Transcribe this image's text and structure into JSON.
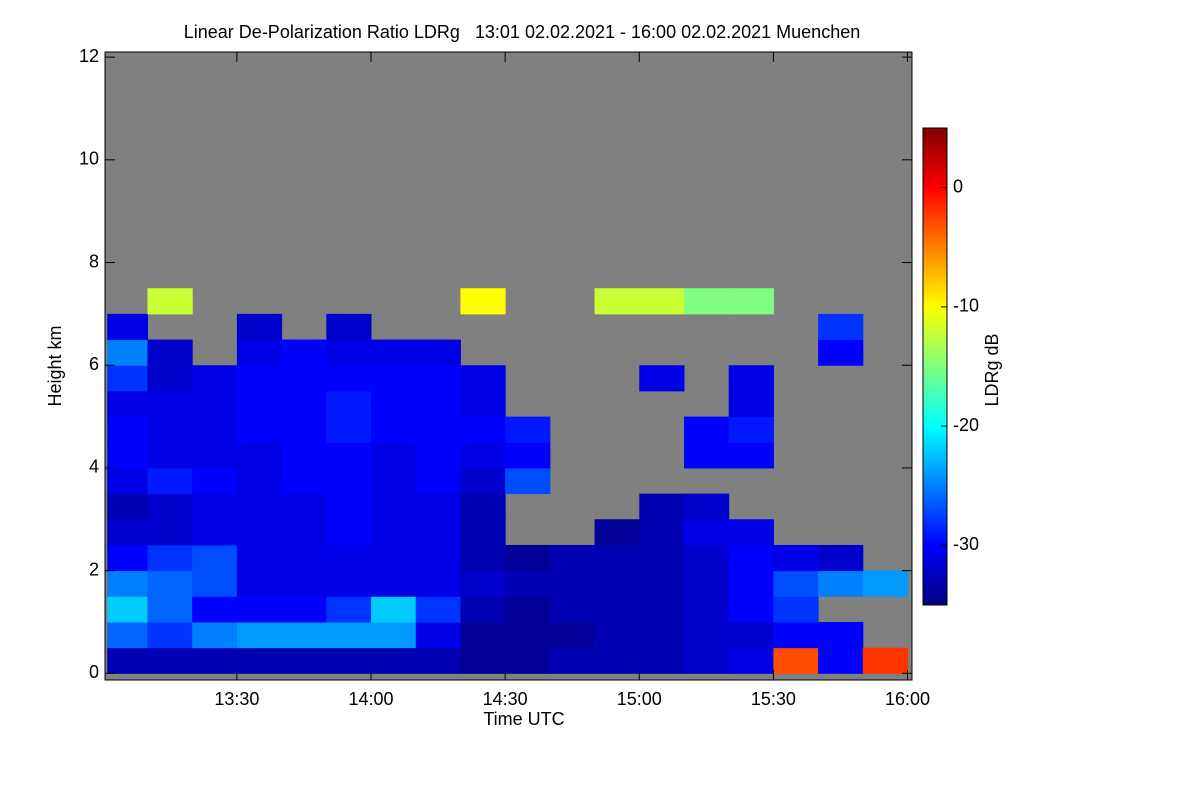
{
  "chart_data": {
    "type": "heatmap",
    "title": "Linear De-Polarization Ratio LDRg   13:01 02.02.2021 - 16:00 02.02.2021 Muenchen",
    "x_label": "Time UTC",
    "y_label": "Height km",
    "colorbar_label": "LDRg dB",
    "colormap": "jet",
    "background_color": "#808080",
    "xlim": [
      780.5,
      961
    ],
    "xticks": [
      {
        "value": 810,
        "label": "13:30"
      },
      {
        "value": 840,
        "label": "14:00"
      },
      {
        "value": 870,
        "label": "14:30"
      },
      {
        "value": 900,
        "label": "15:00"
      },
      {
        "value": 930,
        "label": "15:30"
      },
      {
        "value": 960,
        "label": "16:00"
      }
    ],
    "ylim": [
      -0.13,
      12.1
    ],
    "yticks": [
      0,
      2,
      4,
      6,
      8,
      10,
      12
    ],
    "zlim": [
      -35,
      5
    ],
    "zticks": [
      -30,
      -20,
      -10,
      0
    ],
    "x_bins": [
      781,
      790,
      800,
      810,
      820,
      830,
      840,
      850,
      860,
      870,
      880,
      890,
      900,
      910,
      920,
      930,
      940,
      950,
      960
    ],
    "y_bins": [
      0,
      0.5,
      1,
      1.5,
      2,
      2.5,
      3,
      3.5,
      4,
      4.5,
      5,
      5.5,
      6,
      6.5,
      7,
      7.5
    ],
    "values": [
      [
        -33,
        -33,
        -33,
        -33,
        -33,
        -33,
        -33,
        -33,
        -34,
        -34,
        -33,
        -33,
        -33,
        -32,
        -31,
        -3,
        -30,
        -2
      ],
      [
        -26,
        -28,
        -25,
        -24,
        -24,
        -24,
        -24,
        -31,
        -34,
        -34,
        -34,
        -33,
        -33,
        -32,
        -32,
        -30,
        -30,
        null
      ],
      [
        -22,
        -26,
        -30,
        -30,
        -30,
        -28,
        -22,
        -28,
        -33,
        -34,
        -33,
        -33,
        -33,
        -32,
        -30,
        -28,
        null,
        null
      ],
      [
        -25,
        -26,
        -27,
        -31,
        -31,
        -31,
        -31,
        -31,
        -32,
        -33,
        -33,
        -33,
        -33,
        -32,
        -30,
        -27,
        -25,
        -24
      ],
      [
        -30,
        -28,
        -27,
        -31,
        -31,
        -31,
        -31,
        -31,
        -33,
        -34,
        -33,
        -33,
        -33,
        -32,
        -30,
        -31,
        -32,
        null
      ],
      [
        -32,
        -32,
        -31,
        -31,
        -31,
        -30,
        -31,
        -31,
        -33,
        null,
        null,
        -34,
        -33,
        -31,
        -31,
        null,
        null,
        null
      ],
      [
        -33,
        -32,
        -31,
        -31,
        -31,
        -30,
        -31,
        -31,
        -33,
        null,
        null,
        null,
        -33,
        -32,
        null,
        null,
        null,
        null
      ],
      [
        -31,
        -29,
        -30,
        -31,
        -30,
        -30,
        -31,
        -30,
        -32,
        -27,
        null,
        null,
        null,
        null,
        null,
        null,
        null,
        null
      ],
      [
        -30,
        -31,
        -31,
        -31,
        -30,
        -30,
        -31,
        -30,
        -31,
        -30,
        null,
        null,
        null,
        -30,
        -30,
        null,
        null,
        null
      ],
      [
        -30,
        -31,
        -31,
        -30,
        -30,
        -29,
        -30,
        -30,
        -30,
        -29,
        null,
        null,
        null,
        -30,
        -29,
        null,
        null,
        null
      ],
      [
        -31,
        -31,
        -31,
        -30,
        -30,
        -29,
        -30,
        -30,
        -31,
        null,
        null,
        null,
        null,
        null,
        -31,
        null,
        null,
        null
      ],
      [
        -28,
        -32,
        -31,
        -30,
        -30,
        -30,
        -30,
        -30,
        -31,
        null,
        null,
        null,
        -31,
        null,
        -31,
        null,
        null,
        null
      ],
      [
        -25,
        -32,
        null,
        -31,
        -30,
        -31,
        -31,
        -31,
        null,
        null,
        null,
        null,
        null,
        null,
        null,
        null,
        -30,
        null
      ],
      [
        -31,
        null,
        null,
        -32,
        null,
        -32,
        null,
        null,
        null,
        null,
        null,
        null,
        null,
        null,
        null,
        null,
        -28,
        null
      ],
      [
        null,
        -12,
        null,
        null,
        null,
        null,
        null,
        null,
        -10,
        null,
        null,
        -12,
        -12,
        -15,
        -15,
        null,
        null,
        null
      ]
    ]
  }
}
